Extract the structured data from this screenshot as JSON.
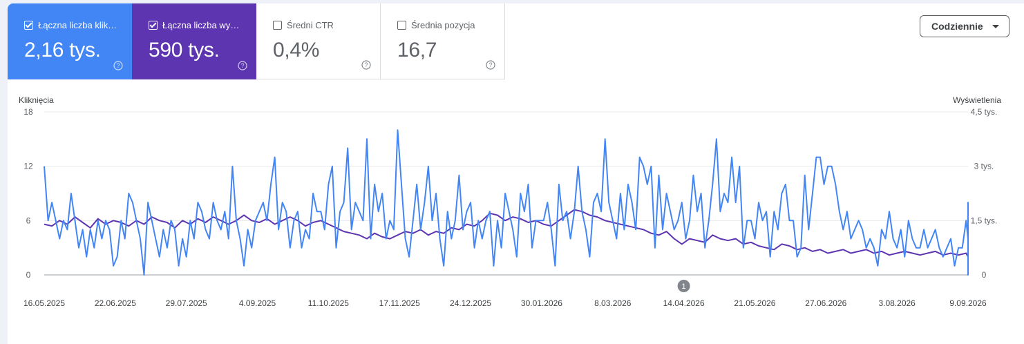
{
  "metrics": [
    {
      "label": "Łączna liczba klik…",
      "value": "2,16 tys.",
      "checked": true,
      "color": "#4285f4"
    },
    {
      "label": "Łączna liczba wy…",
      "value": "590 tys.",
      "checked": true,
      "color": "#5e35b1"
    },
    {
      "label": "Średni CTR",
      "value": "0,4%",
      "checked": false,
      "color": "#ffffff"
    },
    {
      "label": "Średnia pozycja",
      "value": "16,7",
      "checked": false,
      "color": "#ffffff"
    }
  ],
  "help_icon": "help-circle-icon",
  "dropdown": {
    "label": "Codziennie",
    "icon": "caret-down-icon"
  },
  "chart_data": {
    "type": "line",
    "ylabel_left": "Kliknięcia",
    "ylabel_right": "Wyświetlenia",
    "ylim_left": [
      0,
      18
    ],
    "ylim_right": [
      0,
      4500
    ],
    "yticks_left": [
      "18",
      "12",
      "6",
      "0"
    ],
    "yticks_right": [
      "4,5 tys.",
      "3 tys.",
      "1,5 tys.",
      "0"
    ],
    "x_start": "16.05.2025",
    "x_end": "9.09.2026",
    "xticks": [
      "16.05.2025",
      "22.06.2025",
      "29.07.2025",
      "4.09.2025",
      "11.10.2025",
      "17.11.2025",
      "24.12.2025",
      "30.01.2026",
      "8.03.2026",
      "14.04.2026",
      "21.05.2026",
      "27.06.2026",
      "3.08.2026",
      "9.09.2026"
    ],
    "grid": true,
    "annotation": {
      "label": "1",
      "date": "14.04.2026"
    },
    "series": [
      {
        "name": "Kliknięcia",
        "axis": "left",
        "color": "#4285f4",
        "sample_every_days": 2,
        "values": [
          12,
          6,
          8,
          6,
          4,
          6,
          5,
          9,
          6,
          3,
          5,
          2,
          5,
          3,
          6,
          4,
          6,
          5,
          1,
          2,
          6,
          4,
          9,
          8,
          6,
          4,
          0,
          8,
          6,
          4,
          2,
          5,
          3,
          6,
          5,
          1,
          4,
          2,
          6,
          4,
          8,
          7,
          5,
          4,
          8,
          6,
          5,
          7,
          4,
          12,
          6,
          4,
          1,
          5,
          3,
          6,
          7,
          8,
          6,
          10,
          13,
          5,
          8,
          7,
          3,
          6,
          7,
          3,
          5,
          4,
          9,
          7,
          7,
          5,
          10,
          12,
          3,
          7,
          8,
          14,
          5,
          8,
          7,
          6,
          15,
          4,
          10,
          7,
          9,
          4,
          6,
          5,
          16,
          10,
          4,
          2,
          6,
          10,
          5,
          8,
          12,
          6,
          9,
          4,
          1,
          7,
          4,
          6,
          11,
          5,
          7,
          8,
          3,
          6,
          4,
          6,
          7,
          1,
          6,
          3,
          9,
          7,
          5,
          2,
          9,
          7,
          10,
          3,
          6,
          6,
          6,
          8,
          5,
          1,
          10,
          6,
          7,
          4,
          7,
          12,
          7,
          5,
          2,
          8,
          9,
          7,
          15,
          8,
          6,
          4,
          9,
          5,
          10,
          8,
          5,
          13,
          12,
          10,
          12,
          3,
          11,
          5,
          9,
          7,
          5,
          6,
          8,
          4,
          6,
          11,
          7,
          9,
          3,
          6,
          10,
          15,
          7,
          9,
          8,
          13,
          8,
          12,
          3,
          6,
          6,
          4,
          8,
          6,
          7,
          2,
          7,
          5,
          9,
          10,
          6,
          6,
          2,
          3,
          11,
          5,
          9,
          13,
          13,
          10,
          12,
          12,
          10,
          7,
          5,
          7,
          4,
          5,
          6,
          5,
          3,
          4,
          3,
          1,
          5,
          4,
          7,
          4,
          3,
          5,
          2,
          6,
          4,
          3,
          3,
          5,
          3,
          4,
          5,
          3,
          2,
          3,
          4,
          1,
          3,
          3,
          6,
          4,
          2,
          2,
          5,
          2,
          3,
          1,
          2,
          3,
          2,
          1,
          3,
          4,
          3,
          2,
          2,
          3,
          1,
          5,
          4,
          3,
          2,
          1,
          2,
          3,
          3,
          3,
          2,
          1,
          4,
          3,
          2,
          1,
          3,
          3,
          2,
          1,
          2,
          4,
          4,
          3,
          3,
          2,
          4,
          1,
          3,
          3,
          2,
          1,
          3,
          2,
          3,
          3,
          3,
          1,
          2,
          1,
          3,
          4,
          2,
          1,
          3,
          2,
          3,
          1,
          2,
          3,
          2,
          4,
          3,
          2,
          2,
          3,
          3,
          3,
          8,
          2,
          2,
          3,
          1,
          2,
          3,
          2,
          1,
          3,
          2,
          1,
          0,
          1,
          2,
          3,
          1,
          2,
          3,
          1,
          2,
          1,
          3,
          2,
          2,
          3,
          1,
          1,
          2,
          3,
          1,
          2,
          2,
          3,
          1,
          2,
          1,
          8,
          1,
          2,
          0
        ]
      },
      {
        "name": "Wyświetlenia",
        "axis": "right",
        "color": "#5e35b1",
        "sample_every_days": 4,
        "values": [
          1400,
          1350,
          1500,
          1400,
          1600,
          1450,
          1300,
          1550,
          1400,
          1500,
          1450,
          1350,
          1500,
          1400,
          1600,
          1500,
          1450,
          1300,
          1500,
          1400,
          1550,
          1450,
          1600,
          1500,
          1400,
          1500,
          1650,
          1500,
          1450,
          1550,
          1400,
          1500,
          1600,
          1500,
          1350,
          1450,
          1500,
          1400,
          1300,
          1200,
          1150,
          1100,
          1000,
          1150,
          1050,
          1000,
          1100,
          1200,
          1150,
          1250,
          1100,
          1200,
          1150,
          1300,
          1250,
          1400,
          1350,
          1500,
          1700,
          1650,
          1500,
          1600,
          1550,
          1450,
          1500,
          1400,
          1350,
          1500,
          1650,
          1800,
          1750,
          1650,
          1600,
          1500,
          1450,
          1400,
          1350,
          1300,
          1250,
          1150,
          1100,
          1200,
          1000,
          850,
          1000,
          950,
          900,
          1100,
          1000,
          950,
          1000,
          850,
          900,
          800,
          750,
          700,
          850,
          800,
          700,
          750,
          650,
          700,
          600,
          650,
          700,
          600,
          650,
          700,
          600,
          650,
          550,
          600,
          650,
          600,
          550,
          600,
          650,
          550,
          600,
          550,
          600,
          500,
          550,
          600,
          550,
          500,
          600,
          550,
          500,
          550,
          600,
          650,
          700,
          750,
          800,
          850,
          900,
          950,
          1000
        ]
      }
    ]
  }
}
